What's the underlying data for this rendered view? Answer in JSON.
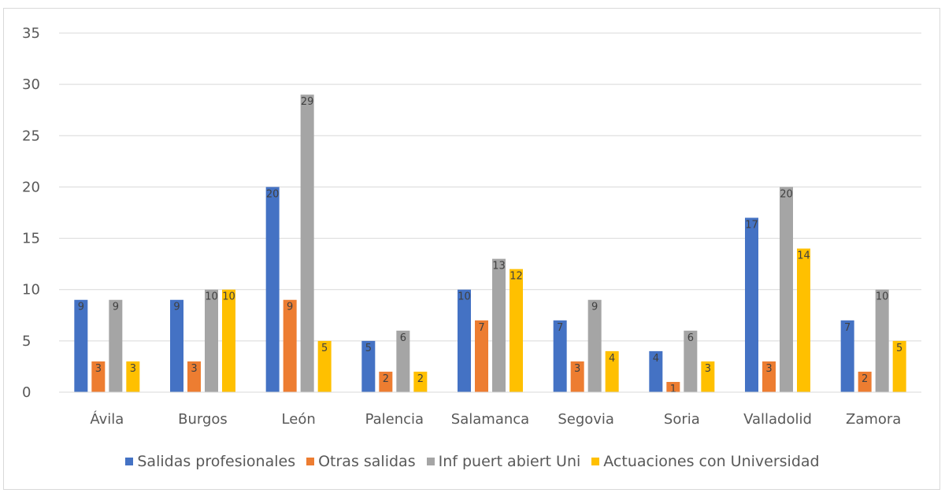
{
  "chart_data": {
    "type": "bar",
    "categories": [
      "Ávila",
      "Burgos",
      "León",
      "Palencia",
      "Salamanca",
      "Segovia",
      "Soria",
      "Valladolid",
      "Zamora"
    ],
    "series": [
      {
        "name": "Salidas profesionales",
        "color": "#4472c4",
        "values": [
          9,
          9,
          20,
          5,
          10,
          7,
          4,
          17,
          7
        ]
      },
      {
        "name": "Otras salidas",
        "color": "#ed7d31",
        "values": [
          3,
          3,
          9,
          2,
          7,
          3,
          1,
          3,
          2
        ]
      },
      {
        "name": "Inf puert abiert Uni",
        "color": "#a5a5a5",
        "values": [
          9,
          10,
          29,
          6,
          13,
          9,
          6,
          20,
          10
        ]
      },
      {
        "name": "Actuaciones con Universidad",
        "color": "#ffc000",
        "values": [
          3,
          10,
          5,
          2,
          12,
          4,
          3,
          14,
          5
        ]
      }
    ],
    "y_ticks": [
      "0",
      "5",
      "10",
      "15",
      "20",
      "25",
      "30",
      "35"
    ],
    "ylim": [
      0,
      35
    ],
    "grid": true,
    "legend_position": "bottom",
    "show_data_labels": true
  }
}
